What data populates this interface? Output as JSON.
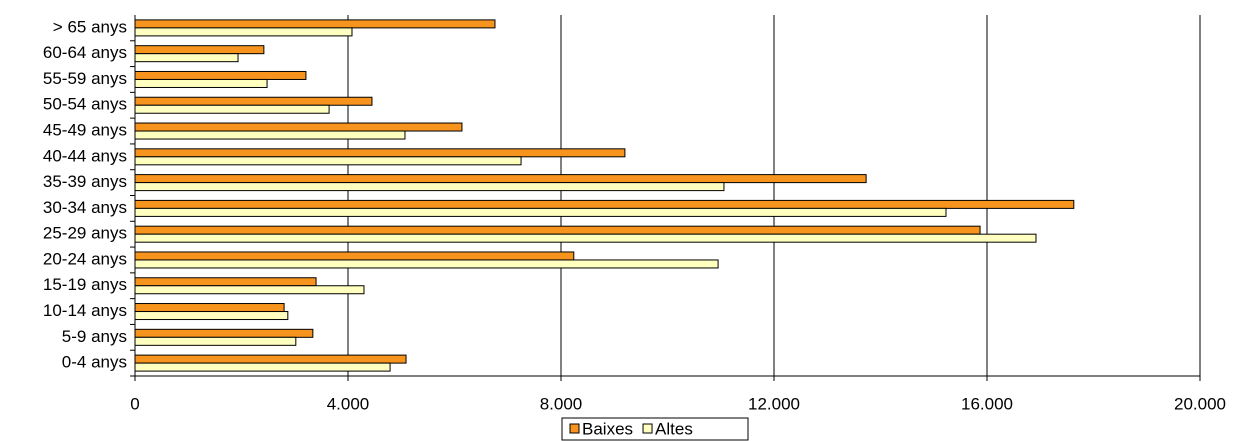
{
  "chart_data": {
    "type": "hbar",
    "categories": [
      "0-4 anys",
      "5-9 anys",
      "10-14 anys",
      "15-19 anys",
      "20-24 anys",
      "25-29 anys",
      "30-34 anys",
      "35-39 anys",
      "40-44 anys",
      "45-49 anys",
      "50-54 anys",
      "55-59 anys",
      "60-64 anys",
      "> 65 anys"
    ],
    "series": [
      {
        "name": "Baixes",
        "color": "#f7941d",
        "values": [
          5090,
          3340,
          2800,
          3400,
          8240,
          15870,
          17630,
          13730,
          9200,
          6140,
          4450,
          3210,
          2420,
          6760
        ]
      },
      {
        "name": "Altes",
        "color": "#ffffc0",
        "values": [
          4790,
          3020,
          2870,
          4300,
          10950,
          16920,
          15230,
          11060,
          7250,
          5070,
          3645,
          2480,
          1935,
          4075
        ]
      }
    ],
    "xlim": [
      0,
      20000
    ],
    "xticks": [
      0,
      {
        "value": 4000,
        "label": "4.000"
      },
      {
        "value": 8000,
        "label": "8.000"
      },
      {
        "value": 12000,
        "label": "12.000"
      },
      {
        "value": 16000,
        "label": "16.000"
      },
      {
        "value": 20000,
        "label": "20.000"
      }
    ],
    "grid": true,
    "legend": "bottom"
  }
}
